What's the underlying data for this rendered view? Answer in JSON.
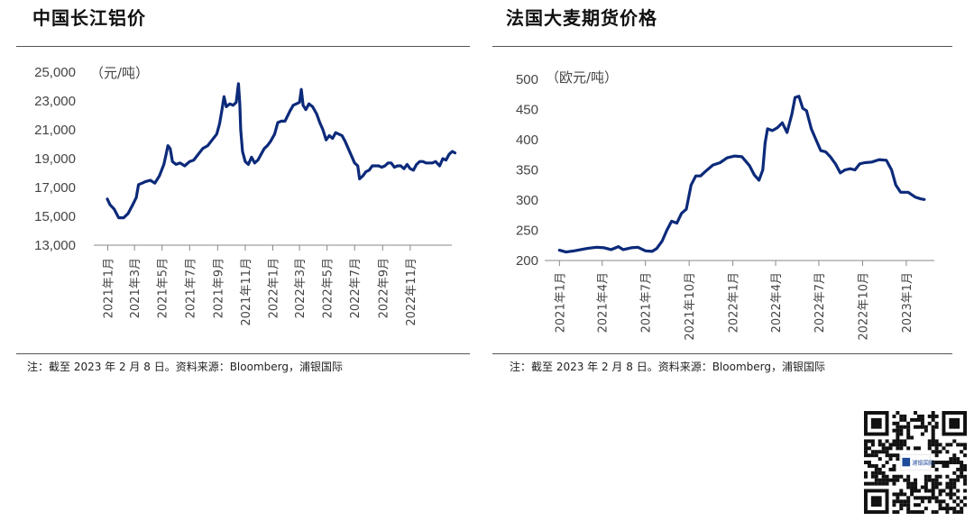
{
  "chart_data": [
    {
      "type": "line",
      "title": "中国长江铝价",
      "unit_label": "（元/吨）",
      "note": "注：截至 2023 年 2 月 8 日。资料来源：Bloomberg，浦银国际",
      "color": "#0c2a7a",
      "ylim": [
        13000,
        25000
      ],
      "y_ticks": [
        "25,000",
        "23,000",
        "21,000",
        "19,000",
        "17,000",
        "15,000",
        "13,000"
      ],
      "y_tick_values": [
        25000,
        23000,
        21000,
        19000,
        17000,
        15000,
        13000
      ],
      "x_ticks": [
        "2021年1月",
        "2021年3月",
        "2021年5月",
        "2021年7月",
        "2021年9月",
        "2021年11月",
        "2022年1月",
        "2022年3月",
        "2022年5月",
        "2022年7月",
        "2022年9月",
        "2022年11月"
      ],
      "x_tick_pos": [
        "2021-01",
        "2021-03",
        "2021-05",
        "2021-07",
        "2021-09",
        "2021-11",
        "2022-01",
        "2022-03",
        "2022-05",
        "2022-07",
        "2022-09",
        "2022-11"
      ],
      "xlim": [
        "2020-12",
        "2023-02"
      ],
      "grid": false,
      "points": [
        [
          "2020-12-31",
          16200
        ],
        [
          "2021-01-06",
          15800
        ],
        [
          "2021-01-15",
          15500
        ],
        [
          "2021-01-25",
          14900
        ],
        [
          "2021-02-05",
          14900
        ],
        [
          "2021-02-15",
          15200
        ],
        [
          "2021-02-25",
          15800
        ],
        [
          "2021-03-05",
          16300
        ],
        [
          "2021-03-10",
          17200
        ],
        [
          "2021-03-18",
          17300
        ],
        [
          "2021-03-25",
          17400
        ],
        [
          "2021-04-05",
          17500
        ],
        [
          "2021-04-15",
          17300
        ],
        [
          "2021-04-25",
          17800
        ],
        [
          "2021-05-05",
          18600
        ],
        [
          "2021-05-10",
          19300
        ],
        [
          "2021-05-14",
          19900
        ],
        [
          "2021-05-19",
          19700
        ],
        [
          "2021-05-24",
          18800
        ],
        [
          "2021-06-01",
          18600
        ],
        [
          "2021-06-10",
          18700
        ],
        [
          "2021-06-20",
          18500
        ],
        [
          "2021-07-01",
          18800
        ],
        [
          "2021-07-10",
          18900
        ],
        [
          "2021-07-20",
          19300
        ],
        [
          "2021-07-30",
          19700
        ],
        [
          "2021-08-10",
          19900
        ],
        [
          "2021-08-20",
          20300
        ],
        [
          "2021-08-30",
          20700
        ],
        [
          "2021-09-05",
          21400
        ],
        [
          "2021-09-10",
          22300
        ],
        [
          "2021-09-15",
          23300
        ],
        [
          "2021-09-20",
          22600
        ],
        [
          "2021-09-28",
          22800
        ],
        [
          "2021-10-05",
          22700
        ],
        [
          "2021-10-12",
          22900
        ],
        [
          "2021-10-17",
          24200
        ],
        [
          "2021-10-20",
          22800
        ],
        [
          "2021-10-22",
          21000
        ],
        [
          "2021-10-26",
          19500
        ],
        [
          "2021-11-01",
          18800
        ],
        [
          "2021-11-08",
          18600
        ],
        [
          "2021-11-15",
          19100
        ],
        [
          "2021-11-22",
          18700
        ],
        [
          "2021-11-29",
          18900
        ],
        [
          "2021-12-06",
          19300
        ],
        [
          "2021-12-13",
          19700
        ],
        [
          "2021-12-20",
          19900
        ],
        [
          "2021-12-27",
          20200
        ],
        [
          "2022-01-05",
          20700
        ],
        [
          "2022-01-12",
          21500
        ],
        [
          "2022-01-20",
          21600
        ],
        [
          "2022-01-28",
          21600
        ],
        [
          "2022-02-08",
          22300
        ],
        [
          "2022-02-15",
          22700
        ],
        [
          "2022-02-22",
          22800
        ],
        [
          "2022-03-01",
          22900
        ],
        [
          "2022-03-05",
          23800
        ],
        [
          "2022-03-09",
          22700
        ],
        [
          "2022-03-15",
          22400
        ],
        [
          "2022-03-22",
          22800
        ],
        [
          "2022-03-30",
          22600
        ],
        [
          "2022-04-08",
          22100
        ],
        [
          "2022-04-15",
          21500
        ],
        [
          "2022-04-22",
          21000
        ],
        [
          "2022-04-29",
          20300
        ],
        [
          "2022-05-06",
          20600
        ],
        [
          "2022-05-13",
          20400
        ],
        [
          "2022-05-20",
          20800
        ],
        [
          "2022-05-27",
          20700
        ],
        [
          "2022-06-03",
          20600
        ],
        [
          "2022-06-10",
          20200
        ],
        [
          "2022-06-17",
          19700
        ],
        [
          "2022-06-24",
          19200
        ],
        [
          "2022-07-01",
          18700
        ],
        [
          "2022-07-08",
          18500
        ],
        [
          "2022-07-12",
          17600
        ],
        [
          "2022-07-19",
          17800
        ],
        [
          "2022-07-26",
          18100
        ],
        [
          "2022-08-02",
          18200
        ],
        [
          "2022-08-09",
          18500
        ],
        [
          "2022-08-16",
          18500
        ],
        [
          "2022-08-23",
          18500
        ],
        [
          "2022-08-30",
          18400
        ],
        [
          "2022-09-06",
          18500
        ],
        [
          "2022-09-13",
          18700
        ],
        [
          "2022-09-20",
          18700
        ],
        [
          "2022-09-27",
          18400
        ],
        [
          "2022-10-04",
          18500
        ],
        [
          "2022-10-11",
          18500
        ],
        [
          "2022-10-18",
          18300
        ],
        [
          "2022-10-25",
          18600
        ],
        [
          "2022-11-01",
          18300
        ],
        [
          "2022-11-08",
          18200
        ],
        [
          "2022-11-15",
          18600
        ],
        [
          "2022-11-22",
          18800
        ],
        [
          "2022-11-29",
          18800
        ],
        [
          "2022-12-06",
          18700
        ],
        [
          "2022-12-13",
          18700
        ],
        [
          "2022-12-20",
          18700
        ],
        [
          "2022-12-27",
          18800
        ],
        [
          "2023-01-05",
          18500
        ],
        [
          "2023-01-12",
          19000
        ],
        [
          "2023-01-19",
          18900
        ],
        [
          "2023-01-26",
          19300
        ],
        [
          "2023-02-02",
          19500
        ],
        [
          "2023-02-08",
          19400
        ]
      ]
    },
    {
      "type": "line",
      "title": "法国大麦期货价格",
      "unit_label": "（欧元/吨）",
      "note": "注：截至 2023 年 2 月 8 日。资料来源：Bloomberg，浦银国际",
      "color": "#0c2a7a",
      "ylim": [
        200,
        500
      ],
      "y_ticks": [
        "500",
        "450",
        "400",
        "350",
        "300",
        "250",
        "200"
      ],
      "y_tick_values": [
        500,
        450,
        400,
        350,
        300,
        250,
        200
      ],
      "x_ticks": [
        "2021年1月",
        "2021年4月",
        "2021年7月",
        "2021年10月",
        "2022年1月",
        "2022年4月",
        "2022年7月",
        "2022年10月",
        "2023年1月"
      ],
      "x_tick_pos": [
        "2021-01",
        "2021-04",
        "2021-07",
        "2021-10",
        "2022-01",
        "2022-04",
        "2022-07",
        "2022-10",
        "2023-01"
      ],
      "xlim": [
        "2020-12",
        "2023-03"
      ],
      "grid": false,
      "points": [
        [
          "2021-01-01",
          217
        ],
        [
          "2021-01-15",
          214
        ],
        [
          "2021-02-01",
          216
        ],
        [
          "2021-02-15",
          218
        ],
        [
          "2021-03-01",
          220
        ],
        [
          "2021-03-20",
          222
        ],
        [
          "2021-04-05",
          221
        ],
        [
          "2021-04-20",
          218
        ],
        [
          "2021-05-05",
          223
        ],
        [
          "2021-05-15",
          218
        ],
        [
          "2021-06-01",
          221
        ],
        [
          "2021-06-15",
          222
        ],
        [
          "2021-07-01",
          216
        ],
        [
          "2021-07-15",
          215
        ],
        [
          "2021-07-25",
          220
        ],
        [
          "2021-08-05",
          232
        ],
        [
          "2021-08-15",
          250
        ],
        [
          "2021-08-25",
          265
        ],
        [
          "2021-09-05",
          262
        ],
        [
          "2021-09-15",
          278
        ],
        [
          "2021-09-25",
          285
        ],
        [
          "2021-10-05",
          325
        ],
        [
          "2021-10-15",
          340
        ],
        [
          "2021-10-25",
          340
        ],
        [
          "2021-11-05",
          348
        ],
        [
          "2021-11-20",
          358
        ],
        [
          "2021-12-05",
          362
        ],
        [
          "2021-12-20",
          370
        ],
        [
          "2022-01-05",
          373
        ],
        [
          "2022-01-20",
          372
        ],
        [
          "2022-02-05",
          357
        ],
        [
          "2022-02-15",
          342
        ],
        [
          "2022-02-25",
          333
        ],
        [
          "2022-03-05",
          350
        ],
        [
          "2022-03-10",
          395
        ],
        [
          "2022-03-15",
          418
        ],
        [
          "2022-03-25",
          415
        ],
        [
          "2022-04-05",
          420
        ],
        [
          "2022-04-15",
          428
        ],
        [
          "2022-04-25",
          412
        ],
        [
          "2022-05-05",
          442
        ],
        [
          "2022-05-12",
          470
        ],
        [
          "2022-05-20",
          472
        ],
        [
          "2022-05-28",
          452
        ],
        [
          "2022-06-05",
          448
        ],
        [
          "2022-06-15",
          418
        ],
        [
          "2022-06-25",
          400
        ],
        [
          "2022-07-05",
          382
        ],
        [
          "2022-07-15",
          380
        ],
        [
          "2022-07-25",
          372
        ],
        [
          "2022-08-05",
          360
        ],
        [
          "2022-08-15",
          345
        ],
        [
          "2022-08-25",
          350
        ],
        [
          "2022-09-05",
          352
        ],
        [
          "2022-09-15",
          350
        ],
        [
          "2022-09-25",
          360
        ],
        [
          "2022-10-05",
          362
        ],
        [
          "2022-10-20",
          363
        ],
        [
          "2022-11-05",
          367
        ],
        [
          "2022-11-20",
          366
        ],
        [
          "2022-12-01",
          350
        ],
        [
          "2022-12-10",
          325
        ],
        [
          "2022-12-20",
          313
        ],
        [
          "2023-01-05",
          313
        ],
        [
          "2023-01-20",
          305
        ],
        [
          "2023-02-01",
          302
        ],
        [
          "2023-02-08",
          301
        ]
      ]
    }
  ],
  "qr": {
    "logo_text": "浦银国际"
  }
}
